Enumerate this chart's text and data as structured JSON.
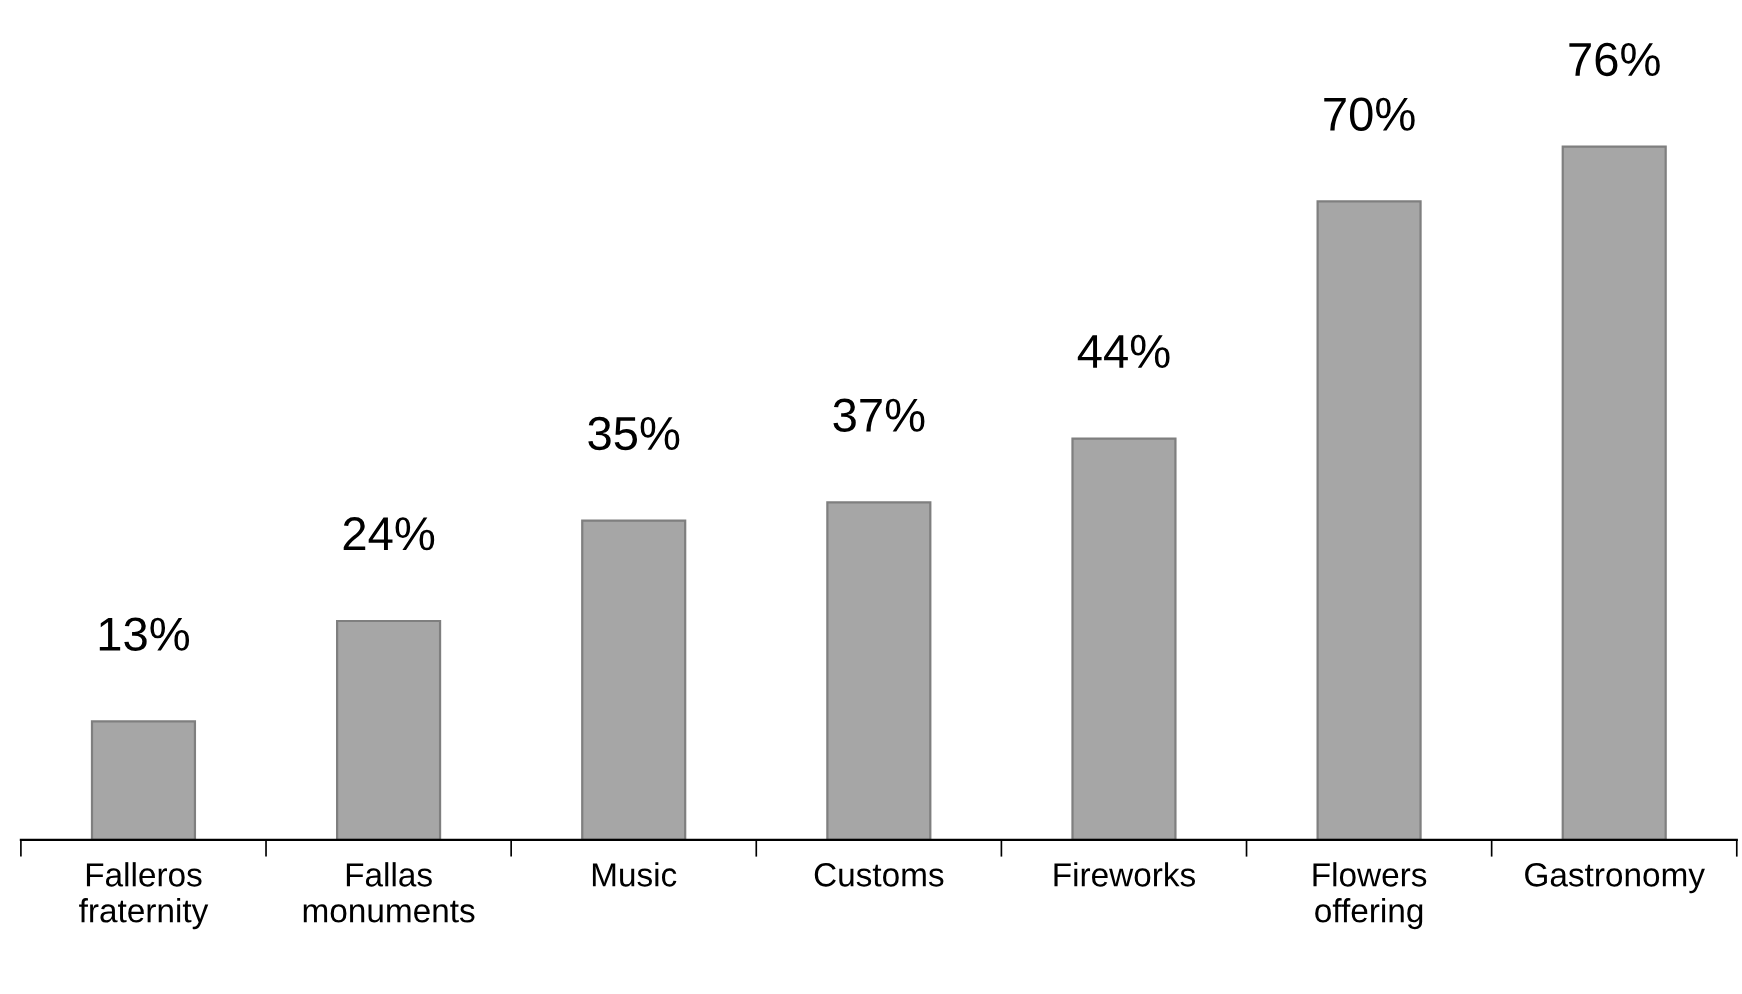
{
  "chart_data": {
    "type": "bar",
    "categories": [
      "Falleros\nfraternity",
      "Fallas\nmonuments",
      "Music",
      "Customs",
      "Fireworks",
      "Flowers\noffering",
      "Gastronomy"
    ],
    "values": [
      13,
      24,
      35,
      37,
      44,
      70,
      76
    ],
    "value_labels": [
      "13%",
      "24%",
      "35%",
      "37%",
      "44%",
      "70%",
      "76%"
    ],
    "color": "#a6a6a6",
    "grid": false,
    "legend": false
  }
}
